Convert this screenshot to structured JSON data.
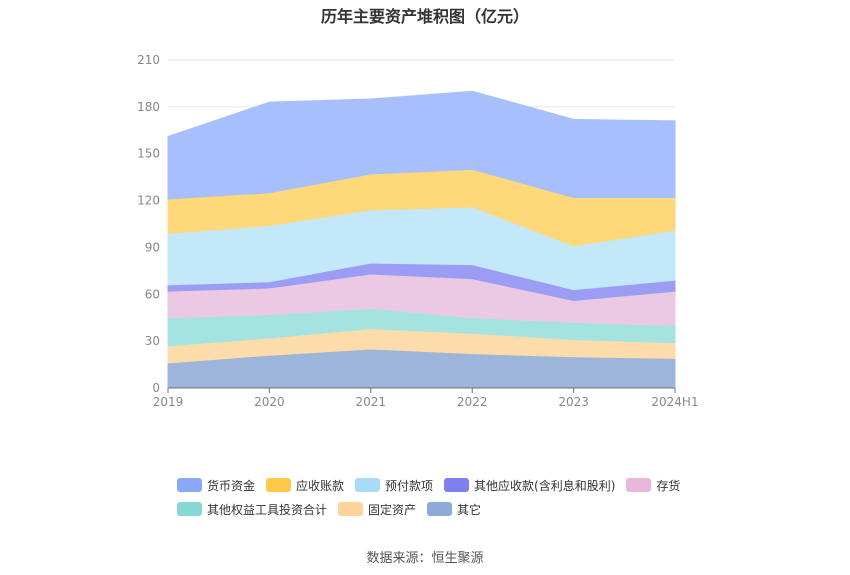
{
  "chart_data": {
    "type": "area",
    "title": "历年主要资产堆积图（亿元）",
    "categories": [
      "2019",
      "2020",
      "2021",
      "2022",
      "2023",
      "2024H1"
    ],
    "ylim": [
      0,
      210
    ],
    "yticks": [
      0,
      30,
      60,
      90,
      120,
      150,
      180,
      210
    ],
    "stacked": true,
    "legend_position": "bottom",
    "series": [
      {
        "name": "其它",
        "color": "#9db4db",
        "values": [
          16,
          21,
          25,
          22,
          20,
          19
        ]
      },
      {
        "name": "固定资产",
        "color": "#fddcab",
        "values": [
          11,
          11,
          13,
          13,
          11,
          10
        ]
      },
      {
        "name": "其他权益工具投资合计",
        "color": "#a5e3e0",
        "values": [
          18,
          15,
          13,
          10,
          11,
          11
        ]
      },
      {
        "name": "存货",
        "color": "#ecc9e3",
        "values": [
          17,
          17,
          22,
          25,
          14,
          22
        ]
      },
      {
        "name": "其他应收款(含利息和股利)",
        "color": "#9b9cf4",
        "values": [
          4,
          4,
          7,
          9,
          7,
          7
        ]
      },
      {
        "name": "预付款项",
        "color": "#c3e8f9",
        "values": [
          33,
          36,
          34,
          37,
          28,
          32
        ]
      },
      {
        "name": "应收账款",
        "color": "#ffd87a",
        "values": [
          22,
          21,
          23,
          24,
          31,
          21
        ]
      },
      {
        "name": "货币资金",
        "color": "#a7bffd",
        "values": [
          40,
          58,
          48,
          50,
          50,
          49
        ]
      }
    ]
  },
  "legend": [
    {
      "label": "货币资金",
      "color": "#8aa8f8"
    },
    {
      "label": "应收账款",
      "color": "#ffc84a"
    },
    {
      "label": "预付款项",
      "color": "#a8dcf5"
    },
    {
      "label": "其他应收款(含利息和股利)",
      "color": "#7f80ee"
    },
    {
      "label": "存货",
      "color": "#e9b6dc"
    },
    {
      "label": "其他权益工具投资合计",
      "color": "#86d8d4"
    },
    {
      "label": "固定资产",
      "color": "#fed49a"
    },
    {
      "label": "其它",
      "color": "#8eabd8"
    }
  ],
  "source": "数据来源：恒生聚源"
}
